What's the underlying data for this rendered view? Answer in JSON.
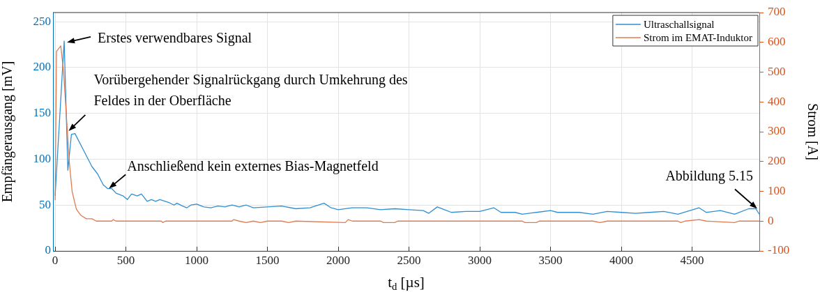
{
  "chart_data": {
    "type": "line",
    "xlabel": "t$_{d}$ [µs]",
    "ylabel": "Empfängerausgang [mV]",
    "y2label": "Strom [A]",
    "xlim": [
      -15,
      4975
    ],
    "xticks": [
      0,
      500,
      1000,
      1500,
      2000,
      2500,
      3000,
      3500,
      4000,
      4500
    ],
    "ylim": [
      0,
      260
    ],
    "yticks": [
      0,
      50,
      100,
      150,
      200,
      250
    ],
    "y2lim": [
      -100,
      700
    ],
    "y2ticks": [
      -100,
      0,
      100,
      200,
      300,
      400,
      500,
      600,
      700
    ],
    "grid": true,
    "legend": "top right",
    "line_style": "solid",
    "marker": "none",
    "series": [
      {
        "name": "Ultraschallsignal",
        "color": "#2f8fd0",
        "x": [
          0,
          64,
          90,
          115,
          140,
          200,
          260,
          300,
          340,
          370,
          400,
          430,
          480,
          510,
          540,
          580,
          610,
          650,
          680,
          710,
          740,
          800,
          840,
          860,
          900,
          930,
          960,
          1000,
          1050,
          1100,
          1150,
          1200,
          1250,
          1300,
          1350,
          1400,
          1500,
          1600,
          1700,
          1800,
          1900,
          1950,
          2000,
          2100,
          2200,
          2300,
          2400,
          2500,
          2600,
          2640,
          2700,
          2750,
          2800,
          2900,
          3000,
          3100,
          3150,
          3250,
          3300,
          3400,
          3500,
          3550,
          3700,
          3800,
          3900,
          4000,
          4100,
          4200,
          4300,
          4400,
          4550,
          4600,
          4700,
          4800,
          4900,
          4950,
          4975
        ],
        "values": [
          60,
          229,
          88,
          127,
          128,
          110,
          92,
          84,
          72,
          68,
          68,
          63,
          60,
          56,
          62,
          60,
          62,
          54,
          56,
          54,
          56,
          53,
          50,
          52,
          49,
          47,
          50,
          51,
          48,
          47,
          49,
          48,
          50,
          48,
          50,
          47,
          48,
          49,
          46,
          47,
          52,
          47,
          45,
          47,
          47,
          45,
          46,
          45,
          44,
          41,
          48,
          45,
          42,
          43,
          43,
          47,
          42,
          42,
          40,
          42,
          44,
          42,
          42,
          40,
          43,
          42,
          41,
          42,
          43,
          40,
          47,
          42,
          44,
          40,
          46,
          46,
          40
        ]
      },
      {
        "name": "Strom im EMAT-Induktor",
        "color": "#e07b50",
        "axis": "y2",
        "x": [
          0,
          10,
          40,
          60,
          80,
          100,
          120,
          150,
          180,
          220,
          260,
          290,
          400,
          410,
          430,
          750,
          760,
          780,
          1250,
          1260,
          1300,
          1350,
          1400,
          1450,
          1500,
          1600,
          1650,
          1700,
          2050,
          2070,
          2100,
          2300,
          2320,
          2400,
          2420,
          3300,
          3320,
          3400,
          3420,
          3800,
          3850,
          3900,
          4400,
          4420,
          4450,
          4550,
          4600,
          4800,
          4830,
          4975
        ],
        "values": [
          70,
          570,
          588,
          500,
          350,
          200,
          100,
          40,
          20,
          8,
          8,
          0,
          0,
          5,
          0,
          0,
          -5,
          0,
          0,
          5,
          0,
          -5,
          0,
          -5,
          0,
          0,
          -5,
          0,
          -5,
          5,
          0,
          0,
          -5,
          -5,
          0,
          0,
          -5,
          -5,
          0,
          0,
          -5,
          0,
          0,
          -5,
          0,
          5,
          0,
          -5,
          0,
          0
        ]
      }
    ],
    "annotations": [
      {
        "text": "Erstes verwendbares Signal",
        "x": 64,
        "y": 229
      },
      {
        "text": "Vorübergehender Signalrückgang durch Umkehrung des Feldes in der Oberfläche",
        "x": 115,
        "y": 127
      },
      {
        "text": "Anschließend kein externes Bias-Magnetfeld",
        "x": 380,
        "y": 68
      },
      {
        "text": "Abbildung 5.15",
        "x": 4960,
        "y": 46
      }
    ]
  }
}
